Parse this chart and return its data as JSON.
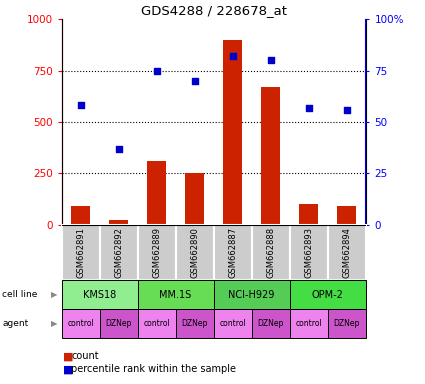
{
  "title": "GDS4288 / 228678_at",
  "samples": [
    "GSM662891",
    "GSM662892",
    "GSM662889",
    "GSM662890",
    "GSM662887",
    "GSM662888",
    "GSM662893",
    "GSM662894"
  ],
  "counts": [
    90,
    25,
    310,
    250,
    900,
    670,
    100,
    90
  ],
  "percentile_ranks": [
    58,
    37,
    75,
    70,
    82,
    80,
    57,
    56
  ],
  "bar_color": "#CC2200",
  "dot_color": "#0000CC",
  "ylim_left": [
    0,
    1000
  ],
  "ylim_right": [
    0,
    100
  ],
  "yticks_left": [
    0,
    250,
    500,
    750,
    1000
  ],
  "yticks_right": [
    0,
    25,
    50,
    75,
    100
  ],
  "ytick_labels_left": [
    "0",
    "250",
    "500",
    "750",
    "1000"
  ],
  "ytick_labels_right": [
    "0",
    "25",
    "50",
    "75",
    "100%"
  ],
  "sample_box_color": "#CCCCCC",
  "cell_lines": [
    {
      "label": "KMS18",
      "start": 0,
      "end": 2,
      "color": "#90EE90"
    },
    {
      "label": "MM.1S",
      "start": 2,
      "end": 4,
      "color": "#66DD55"
    },
    {
      "label": "NCI-H929",
      "start": 4,
      "end": 6,
      "color": "#55CC55"
    },
    {
      "label": "OPM-2",
      "start": 6,
      "end": 8,
      "color": "#44DD44"
    }
  ],
  "agents": [
    "control",
    "DZNep",
    "control",
    "DZNep",
    "control",
    "DZNep",
    "control",
    "DZNep"
  ],
  "agent_color_control": "#EE82EE",
  "agent_color_dznep": "#CC55CC",
  "legend_count_color": "#CC2200",
  "legend_pct_color": "#0000CC"
}
